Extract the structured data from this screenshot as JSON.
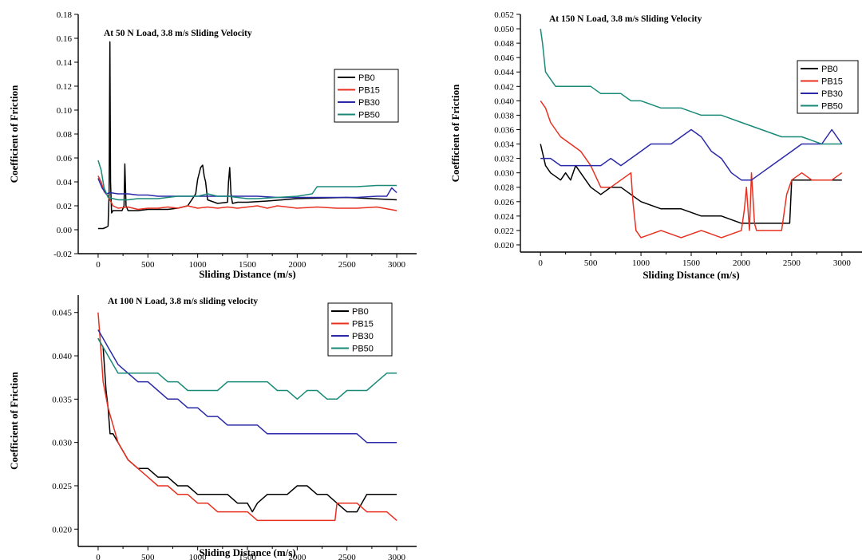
{
  "colors": {
    "PB0": "#000000",
    "PB15": "#e83020",
    "PB30": "#2a2aa8",
    "PB50": "#1a8a78"
  },
  "chart_data": [
    {
      "type": "line",
      "title": "At 50 N Load, 3.8 m/s Sliding Velocity",
      "xlabel": "Sliding Distance (m/s)",
      "ylabel": "Coefficient of Friction",
      "xlim": [
        -200,
        3200
      ],
      "ylim": [
        -0.02,
        0.18
      ],
      "xticks": [
        0,
        500,
        1000,
        1500,
        2000,
        2500,
        3000
      ],
      "xtick_labels": [
        "0",
        "500",
        "1000",
        "1500",
        "2000",
        "2500",
        "3000"
      ],
      "yticks": [
        -0.02,
        0.0,
        0.02,
        0.04,
        0.06,
        0.08,
        0.1,
        0.12,
        0.14,
        0.16,
        0.18
      ],
      "ytick_labels": [
        "-0.02",
        "0.00",
        "0.02",
        "0.04",
        "0.06",
        "0.08",
        "0.10",
        "0.12",
        "0.14",
        "0.16",
        "0.18"
      ],
      "grid": false,
      "legend_position": "top-right",
      "series": [
        {
          "name": "PB0",
          "x": [
            0,
            50,
            80,
            100,
            110,
            118,
            125,
            135,
            150,
            200,
            240,
            260,
            268,
            280,
            300,
            400,
            500,
            600,
            700,
            800,
            900,
            980,
            1000,
            1030,
            1050,
            1065,
            1080,
            1100,
            1200,
            1300,
            1310,
            1322,
            1335,
            1350,
            1400,
            1500,
            1700,
            2000,
            2500,
            3000
          ],
          "y": [
            0.001,
            0.001,
            0.002,
            0.003,
            0.03,
            0.157,
            0.04,
            0.014,
            0.016,
            0.016,
            0.016,
            0.02,
            0.055,
            0.02,
            0.016,
            0.016,
            0.017,
            0.017,
            0.017,
            0.018,
            0.02,
            0.03,
            0.042,
            0.052,
            0.054,
            0.045,
            0.04,
            0.025,
            0.022,
            0.023,
            0.04,
            0.052,
            0.03,
            0.022,
            0.023,
            0.023,
            0.024,
            0.026,
            0.027,
            0.025
          ]
        },
        {
          "name": "PB15",
          "x": [
            0,
            30,
            60,
            100,
            150,
            200,
            300,
            400,
            500,
            600,
            700,
            800,
            900,
            1000,
            1100,
            1200,
            1300,
            1400,
            1500,
            1600,
            1700,
            1800,
            2000,
            2200,
            2400,
            2600,
            2800,
            3000
          ],
          "y": [
            0.045,
            0.04,
            0.032,
            0.028,
            0.02,
            0.018,
            0.019,
            0.017,
            0.018,
            0.018,
            0.019,
            0.018,
            0.02,
            0.018,
            0.019,
            0.018,
            0.019,
            0.018,
            0.019,
            0.02,
            0.018,
            0.02,
            0.018,
            0.019,
            0.018,
            0.018,
            0.019,
            0.016
          ]
        },
        {
          "name": "PB30",
          "x": [
            0,
            40,
            80,
            120,
            200,
            300,
            400,
            500,
            600,
            700,
            800,
            900,
            1000,
            1200,
            1400,
            1600,
            1800,
            2000,
            2200,
            2400,
            2600,
            2800,
            2900,
            2950,
            3000
          ],
          "y": [
            0.043,
            0.035,
            0.03,
            0.031,
            0.03,
            0.03,
            0.029,
            0.029,
            0.028,
            0.028,
            0.028,
            0.028,
            0.028,
            0.028,
            0.028,
            0.028,
            0.027,
            0.027,
            0.027,
            0.027,
            0.027,
            0.028,
            0.028,
            0.035,
            0.031
          ]
        },
        {
          "name": "PB50",
          "x": [
            0,
            30,
            60,
            100,
            150,
            200,
            300,
            400,
            500,
            600,
            700,
            800,
            900,
            1000,
            1100,
            1200,
            1300,
            1400,
            1500,
            1600,
            1800,
            2000,
            2150,
            2200,
            2400,
            2600,
            2800,
            3000
          ],
          "y": [
            0.058,
            0.05,
            0.035,
            0.027,
            0.026,
            0.025,
            0.025,
            0.026,
            0.026,
            0.026,
            0.027,
            0.028,
            0.028,
            0.028,
            0.03,
            0.028,
            0.028,
            0.027,
            0.026,
            0.026,
            0.027,
            0.028,
            0.03,
            0.036,
            0.036,
            0.036,
            0.037,
            0.037
          ]
        }
      ]
    },
    {
      "type": "line",
      "title": "At 150 N Load, 3.8 m/s Sliding Velocity",
      "xlabel": "Sliding Distance (m/s)",
      "ylabel": "Coefficient of Friction",
      "xlim": [
        -200,
        3200
      ],
      "ylim": [
        0.019,
        0.052
      ],
      "xticks": [
        0,
        500,
        1000,
        1500,
        2000,
        2500,
        3000
      ],
      "xtick_labels": [
        "0",
        "500",
        "1000",
        "1500",
        "2000",
        "2500",
        "3000"
      ],
      "yticks": [
        0.02,
        0.022,
        0.024,
        0.026,
        0.028,
        0.03,
        0.032,
        0.034,
        0.036,
        0.038,
        0.04,
        0.042,
        0.044,
        0.046,
        0.048,
        0.05,
        0.052
      ],
      "ytick_labels": [
        "0.020",
        "0.022",
        "0.024",
        "0.026",
        "0.028",
        "0.030",
        "0.032",
        "0.034",
        "0.036",
        "0.038",
        "0.040",
        "0.042",
        "0.044",
        "0.046",
        "0.048",
        "0.050",
        "0.052"
      ],
      "grid": false,
      "legend_position": "top-right",
      "series": [
        {
          "name": "PB0",
          "x": [
            0,
            50,
            100,
            200,
            250,
            300,
            350,
            400,
            500,
            600,
            700,
            800,
            900,
            1000,
            1200,
            1400,
            1600,
            1800,
            2000,
            2100,
            2200,
            2300,
            2400,
            2480,
            2500,
            2600,
            2700,
            2800,
            2900,
            3000
          ],
          "y": [
            0.034,
            0.031,
            0.03,
            0.029,
            0.03,
            0.029,
            0.031,
            0.03,
            0.028,
            0.027,
            0.028,
            0.028,
            0.027,
            0.026,
            0.025,
            0.025,
            0.024,
            0.024,
            0.023,
            0.023,
            0.023,
            0.023,
            0.023,
            0.023,
            0.029,
            0.029,
            0.029,
            0.029,
            0.029,
            0.029
          ]
        },
        {
          "name": "PB15",
          "x": [
            0,
            50,
            100,
            200,
            300,
            400,
            500,
            600,
            700,
            800,
            900,
            920,
            950,
            1000,
            1200,
            1400,
            1600,
            1800,
            2000,
            2030,
            2050,
            2080,
            2100,
            2130,
            2150,
            2200,
            2300,
            2400,
            2450,
            2500,
            2600,
            2700,
            2800,
            2900,
            3000
          ],
          "y": [
            0.04,
            0.039,
            0.037,
            0.035,
            0.034,
            0.033,
            0.031,
            0.028,
            0.028,
            0.029,
            0.03,
            0.026,
            0.022,
            0.021,
            0.022,
            0.021,
            0.022,
            0.021,
            0.022,
            0.025,
            0.028,
            0.022,
            0.03,
            0.023,
            0.022,
            0.022,
            0.022,
            0.022,
            0.027,
            0.029,
            0.03,
            0.029,
            0.029,
            0.029,
            0.03
          ]
        },
        {
          "name": "PB30",
          "x": [
            0,
            100,
            200,
            300,
            400,
            500,
            600,
            700,
            800,
            900,
            1000,
            1100,
            1200,
            1300,
            1400,
            1500,
            1600,
            1700,
            1800,
            1900,
            2000,
            2100,
            2200,
            2300,
            2400,
            2500,
            2600,
            2700,
            2800,
            2850,
            2900,
            2950,
            3000
          ],
          "y": [
            0.032,
            0.032,
            0.031,
            0.031,
            0.031,
            0.031,
            0.031,
            0.032,
            0.031,
            0.032,
            0.033,
            0.034,
            0.034,
            0.034,
            0.035,
            0.036,
            0.035,
            0.033,
            0.032,
            0.03,
            0.029,
            0.029,
            0.03,
            0.031,
            0.032,
            0.033,
            0.034,
            0.034,
            0.034,
            0.035,
            0.036,
            0.035,
            0.034
          ]
        },
        {
          "name": "PB50",
          "x": [
            0,
            20,
            50,
            100,
            150,
            200,
            300,
            400,
            500,
            600,
            700,
            800,
            900,
            1000,
            1200,
            1400,
            1600,
            1800,
            2000,
            2200,
            2400,
            2600,
            2800,
            3000
          ],
          "y": [
            0.05,
            0.048,
            0.044,
            0.043,
            0.042,
            0.042,
            0.042,
            0.042,
            0.042,
            0.041,
            0.041,
            0.041,
            0.04,
            0.04,
            0.039,
            0.039,
            0.038,
            0.038,
            0.037,
            0.036,
            0.035,
            0.035,
            0.034,
            0.034
          ]
        }
      ]
    },
    {
      "type": "line",
      "title": "At 100 N Load, 3.8 m/s sliding velocity",
      "xlabel": "Sliding Distance (m/s)",
      "ylabel": "Coefficient of Friction",
      "xlim": [
        -200,
        3200
      ],
      "ylim": [
        0.018,
        0.047
      ],
      "xticks": [
        0,
        500,
        1000,
        1500,
        2000,
        2500,
        3000
      ],
      "xtick_labels": [
        "0",
        "500",
        "1000",
        "1500",
        "2000",
        "2500",
        "3000"
      ],
      "yticks": [
        0.02,
        0.025,
        0.03,
        0.035,
        0.04,
        0.045
      ],
      "ytick_labels": [
        "0.020",
        "0.025",
        "0.030",
        "0.035",
        "0.040",
        "0.045"
      ],
      "grid": false,
      "legend_position": "top-right",
      "series": [
        {
          "name": "PB0",
          "x": [
            0,
            50,
            80,
            100,
            120,
            150,
            200,
            300,
            400,
            500,
            600,
            700,
            800,
            900,
            1000,
            1100,
            1200,
            1300,
            1400,
            1500,
            1550,
            1600,
            1700,
            1800,
            1900,
            2000,
            2100,
            2200,
            2300,
            2400,
            2500,
            2600,
            2700,
            2800,
            2900,
            3000
          ],
          "y": [
            0.042,
            0.041,
            0.036,
            0.034,
            0.031,
            0.031,
            0.03,
            0.028,
            0.027,
            0.027,
            0.026,
            0.026,
            0.025,
            0.025,
            0.024,
            0.024,
            0.024,
            0.024,
            0.023,
            0.023,
            0.022,
            0.023,
            0.024,
            0.024,
            0.024,
            0.025,
            0.025,
            0.024,
            0.024,
            0.023,
            0.022,
            0.022,
            0.024,
            0.024,
            0.024,
            0.024
          ]
        },
        {
          "name": "PB15",
          "x": [
            0,
            20,
            50,
            100,
            150,
            200,
            300,
            400,
            500,
            600,
            700,
            800,
            900,
            1000,
            1100,
            1200,
            1300,
            1400,
            1500,
            1600,
            1700,
            1800,
            1900,
            2000,
            2100,
            2200,
            2300,
            2380,
            2400,
            2500,
            2600,
            2700,
            2800,
            2900,
            3000
          ],
          "y": [
            0.045,
            0.042,
            0.037,
            0.034,
            0.032,
            0.03,
            0.028,
            0.027,
            0.026,
            0.025,
            0.025,
            0.024,
            0.024,
            0.023,
            0.023,
            0.022,
            0.022,
            0.022,
            0.022,
            0.021,
            0.021,
            0.021,
            0.021,
            0.021,
            0.021,
            0.021,
            0.021,
            0.021,
            0.023,
            0.023,
            0.023,
            0.022,
            0.022,
            0.022,
            0.021
          ]
        },
        {
          "name": "PB30",
          "x": [
            0,
            50,
            100,
            200,
            300,
            400,
            500,
            600,
            700,
            800,
            900,
            1000,
            1100,
            1200,
            1300,
            1400,
            1500,
            1600,
            1700,
            1800,
            1900,
            2000,
            2100,
            2200,
            2300,
            2400,
            2500,
            2600,
            2700,
            2800,
            2900,
            3000
          ],
          "y": [
            0.043,
            0.042,
            0.041,
            0.039,
            0.038,
            0.037,
            0.037,
            0.036,
            0.035,
            0.035,
            0.034,
            0.034,
            0.033,
            0.033,
            0.032,
            0.032,
            0.032,
            0.032,
            0.031,
            0.031,
            0.031,
            0.031,
            0.031,
            0.031,
            0.031,
            0.031,
            0.031,
            0.031,
            0.03,
            0.03,
            0.03,
            0.03
          ]
        },
        {
          "name": "PB50",
          "x": [
            0,
            50,
            100,
            150,
            200,
            300,
            400,
            500,
            600,
            700,
            800,
            900,
            1000,
            1100,
            1200,
            1300,
            1400,
            1500,
            1600,
            1700,
            1800,
            1900,
            2000,
            2100,
            2200,
            2300,
            2400,
            2500,
            2600,
            2700,
            2800,
            2900,
            3000
          ],
          "y": [
            0.042,
            0.041,
            0.04,
            0.039,
            0.038,
            0.038,
            0.038,
            0.038,
            0.038,
            0.037,
            0.037,
            0.036,
            0.036,
            0.036,
            0.036,
            0.037,
            0.037,
            0.037,
            0.037,
            0.037,
            0.036,
            0.036,
            0.035,
            0.036,
            0.036,
            0.035,
            0.035,
            0.036,
            0.036,
            0.036,
            0.037,
            0.038,
            0.038
          ]
        }
      ]
    }
  ]
}
